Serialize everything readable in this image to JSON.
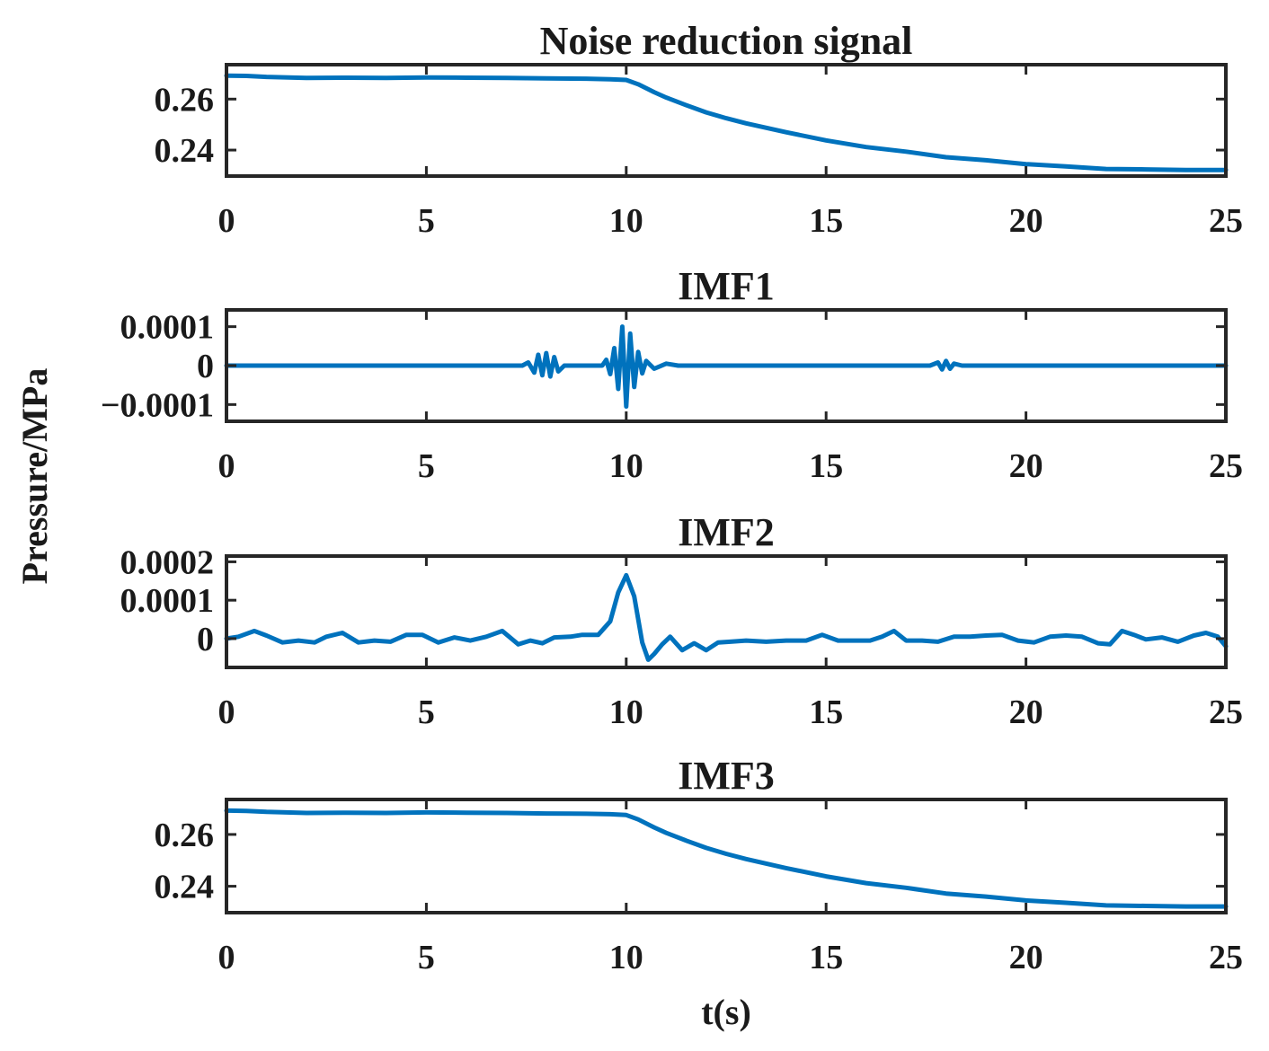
{
  "figure": {
    "ylabel": "Pressure/MPa",
    "xlabel": "t(s)",
    "line_color": "#0072BD"
  },
  "chart_data": [
    {
      "type": "line",
      "title": "Noise reduction signal",
      "xlabel": "",
      "ylabel": "",
      "xlim": [
        0,
        25
      ],
      "ylim": [
        0.2298,
        0.2735
      ],
      "xticks": [
        0,
        5,
        10,
        15,
        20,
        25
      ],
      "xtick_labels": [
        "0",
        "5",
        "10",
        "15",
        "20",
        "25"
      ],
      "yticks": [
        0.24,
        0.26
      ],
      "ytick_labels": [
        "0.24",
        "0.26"
      ],
      "series": [
        {
          "name": "Noise reduction signal",
          "x": [
            0,
            0.5,
            1,
            2,
            3,
            4,
            5,
            6,
            7,
            8,
            9,
            9.6,
            10,
            10.3,
            10.7,
            11,
            11.5,
            12,
            12.5,
            13,
            14,
            15,
            16,
            17,
            18,
            19,
            20,
            21,
            22,
            23,
            24,
            25
          ],
          "y": [
            0.2692,
            0.2691,
            0.2687,
            0.2683,
            0.2684,
            0.2683,
            0.2685,
            0.2684,
            0.2683,
            0.2681,
            0.268,
            0.2678,
            0.2675,
            0.2658,
            0.2627,
            0.2606,
            0.2576,
            0.2548,
            0.2525,
            0.2505,
            0.247,
            0.2438,
            0.2412,
            0.2394,
            0.2372,
            0.236,
            0.2345,
            0.2336,
            0.2326,
            0.2324,
            0.2322,
            0.2322
          ]
        }
      ]
    },
    {
      "type": "line",
      "title": "IMF1",
      "xlabel": "",
      "ylabel": "",
      "xlim": [
        0,
        25
      ],
      "ylim": [
        -0.000143,
        0.000143
      ],
      "xticks": [
        0,
        5,
        10,
        15,
        20,
        25
      ],
      "xtick_labels": [
        "0",
        "5",
        "10",
        "15",
        "20",
        "25"
      ],
      "yticks": [
        -0.0001,
        0,
        0.0001
      ],
      "ytick_labels": [
        "−0.0001",
        "0",
        "0.0001"
      ],
      "series": [
        {
          "name": "IMF1",
          "x": [
            0,
            7.4,
            7.55,
            7.7,
            7.8,
            7.9,
            8.0,
            8.1,
            8.2,
            8.3,
            8.45,
            9.4,
            9.5,
            9.6,
            9.7,
            9.8,
            9.9,
            10.0,
            10.1,
            10.2,
            10.3,
            10.4,
            10.5,
            10.7,
            11.0,
            11.3,
            17.6,
            17.8,
            17.9,
            18.0,
            18.1,
            18.2,
            18.4,
            25
          ],
          "y": [
            0,
            0,
            8e-06,
            -1.8e-05,
            2.8e-05,
            -2.5e-05,
            3.2e-05,
            -2.8e-05,
            2.2e-05,
            -1.5e-05,
            0,
            0,
            1.5e-05,
            -2.2e-05,
            4.5e-05,
            -6e-05,
            0.0001,
            -0.000105,
            8.2e-05,
            -5.5e-05,
            3.5e-05,
            -2e-05,
            1.2e-05,
            -8e-06,
            5e-06,
            0,
            0,
            8e-06,
            -1e-05,
            1.2e-05,
            -8e-06,
            5e-06,
            0,
            0
          ]
        }
      ]
    },
    {
      "type": "line",
      "title": "IMF2",
      "xlabel": "",
      "ylabel": "",
      "xlim": [
        0,
        25
      ],
      "ylim": [
        -7.5e-05,
        0.000215
      ],
      "xticks": [
        0,
        5,
        10,
        15,
        20,
        25
      ],
      "xtick_labels": [
        "0",
        "5",
        "10",
        "15",
        "20",
        "25"
      ],
      "yticks": [
        0,
        0.0001,
        0.0002
      ],
      "ytick_labels": [
        "0",
        "0.0001",
        "0.0002"
      ],
      "series": [
        {
          "name": "IMF2",
          "x": [
            0,
            0.3,
            0.7,
            1.0,
            1.4,
            1.8,
            2.2,
            2.5,
            2.9,
            3.3,
            3.7,
            4.1,
            4.5,
            4.9,
            5.3,
            5.7,
            6.1,
            6.5,
            6.9,
            7.3,
            7.6,
            7.9,
            8.2,
            8.6,
            8.9,
            9.3,
            9.6,
            9.8,
            10.0,
            10.2,
            10.4,
            10.55,
            10.7,
            10.9,
            11.1,
            11.4,
            11.7,
            12.0,
            12.3,
            12.6,
            13.0,
            13.5,
            14.0,
            14.5,
            14.9,
            15.3,
            15.7,
            16.1,
            16.4,
            16.7,
            17.0,
            17.4,
            17.8,
            18.2,
            18.6,
            19.0,
            19.4,
            19.8,
            20.2,
            20.6,
            21.0,
            21.4,
            21.8,
            22.1,
            22.4,
            22.7,
            23.0,
            23.4,
            23.8,
            24.2,
            24.5,
            24.8,
            25.0
          ],
          "y": [
            0,
            5e-06,
            2e-05,
            8e-06,
            -1e-05,
            -5e-06,
            -1e-05,
            5e-06,
            1.5e-05,
            -1e-05,
            -5e-06,
            -8e-06,
            1e-05,
            1e-05,
            -1e-05,
            3e-06,
            -5e-06,
            5e-06,
            2e-05,
            -1.5e-05,
            -5e-06,
            -1.2e-05,
            3e-06,
            5e-06,
            1e-05,
            1e-05,
            4.5e-05,
            0.00012,
            0.000165,
            0.00011,
            -1e-05,
            -5.5e-05,
            -4e-05,
            -1.5e-05,
            5e-06,
            -3e-05,
            -1.2e-05,
            -3e-05,
            -1e-05,
            -8e-06,
            -5e-06,
            -8e-06,
            -5e-06,
            -5e-06,
            1e-05,
            -5e-06,
            -5e-06,
            -5e-06,
            5e-06,
            2e-05,
            -5e-06,
            -5e-06,
            -8e-06,
            5e-06,
            5e-06,
            8e-06,
            1e-05,
            -5e-06,
            -1e-05,
            5e-06,
            8e-06,
            5e-06,
            -1.2e-05,
            -1.5e-05,
            2e-05,
            1e-05,
            -2e-06,
            3e-06,
            -8e-06,
            8e-06,
            1.5e-05,
            5e-06,
            -2e-05
          ]
        }
      ]
    },
    {
      "type": "line",
      "title": "IMF3",
      "xlabel": "",
      "ylabel": "",
      "xlim": [
        0,
        25
      ],
      "ylim": [
        0.2298,
        0.2735
      ],
      "xticks": [
        0,
        5,
        10,
        15,
        20,
        25
      ],
      "xtick_labels": [
        "0",
        "5",
        "10",
        "15",
        "20",
        "25"
      ],
      "yticks": [
        0.24,
        0.26
      ],
      "ytick_labels": [
        "0.24",
        "0.26"
      ],
      "series": [
        {
          "name": "IMF3",
          "x": [
            0,
            0.5,
            1,
            2,
            3,
            4,
            5,
            6,
            7,
            8,
            9,
            9.6,
            10,
            10.3,
            10.7,
            11,
            11.5,
            12,
            12.5,
            13,
            14,
            15,
            16,
            17,
            18,
            19,
            20,
            21,
            22,
            23,
            24,
            25
          ],
          "y": [
            0.2692,
            0.2691,
            0.2687,
            0.2683,
            0.2684,
            0.2683,
            0.2685,
            0.2684,
            0.2683,
            0.2681,
            0.268,
            0.2678,
            0.2675,
            0.2658,
            0.2627,
            0.2606,
            0.2576,
            0.2548,
            0.2525,
            0.2505,
            0.247,
            0.2438,
            0.2412,
            0.2394,
            0.2372,
            0.236,
            0.2345,
            0.2336,
            0.2326,
            0.2324,
            0.2322,
            0.2322
          ]
        }
      ]
    }
  ]
}
